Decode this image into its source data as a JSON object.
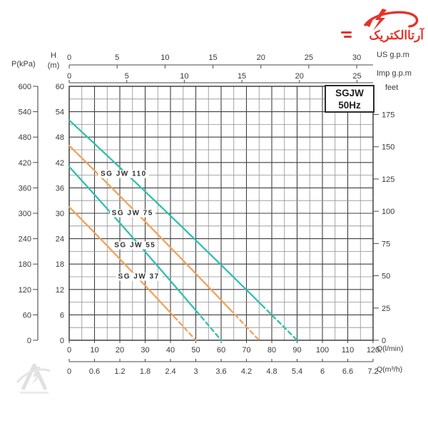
{
  "logo": {
    "text": "آرتاالکتریک"
  },
  "title_box": {
    "line1": "SGJW",
    "line2": "50Hz"
  },
  "axes": {
    "top_us": {
      "unit": "US g.p.m",
      "ticks": [
        0,
        5,
        10,
        15,
        20,
        25,
        30
      ]
    },
    "top_imp": {
      "unit": "Imp g.p.m",
      "ticks": [
        0,
        5,
        10,
        15,
        20,
        25
      ]
    },
    "left_pressure": {
      "unit": "P(kPa)",
      "ticks": [
        600,
        540,
        480,
        420,
        360,
        300,
        240,
        180,
        120,
        60,
        0
      ]
    },
    "left_head": {
      "unit_line1": "H",
      "unit_line2": "(m)",
      "ticks": [
        60,
        54,
        48,
        42,
        36,
        30,
        24,
        18,
        12,
        6,
        0
      ]
    },
    "right_feet": {
      "unit": "feet",
      "ticks": [
        175,
        150,
        125,
        100,
        75,
        50,
        25,
        0
      ]
    },
    "bottom_flow_lmin": {
      "unit": "Q(l/min)",
      "ticks": [
        0,
        10,
        20,
        30,
        40,
        50,
        60,
        70,
        80,
        90,
        100,
        110,
        120
      ]
    },
    "bottom_flow_m3h": {
      "unit": "Q(m³/h)",
      "ticks": [
        "0",
        "0.6",
        "1.2",
        "1.8",
        "2.4",
        "3",
        "3.6",
        "4.2",
        "4.8",
        "5.4",
        "6",
        "6.6",
        "7.2"
      ]
    }
  },
  "chart_data": {
    "type": "line",
    "title": "SGJW 50Hz",
    "xlabel": "Q (l/min)",
    "ylabel": "H (m)",
    "xlim": [
      0,
      120
    ],
    "ylim": [
      0,
      60
    ],
    "grid": {
      "x_minor_step": 5,
      "x_major_step": 10,
      "y_minor_step": 3,
      "y_major_step": 6
    },
    "conversions": {
      "us_gpm_in_l_min": 3.785,
      "imp_gpm_in_l_min": 4.546,
      "foot_in_m": 0.3048,
      "m3h_in_l_min": 16.6667
    },
    "series": [
      {
        "name": "SG JW 110",
        "color": "#2EC0B0",
        "shutoff_head_m": 52.0,
        "max_flow_l_min": 90,
        "dashed_from_l_min": 76,
        "label_at_q_h": [
          21.5,
          39.2
        ],
        "points_q_h": [
          [
            0,
            52
          ],
          [
            20,
            40.5
          ],
          [
            40,
            29
          ],
          [
            60,
            17.5
          ],
          [
            80,
            6
          ],
          [
            90,
            0
          ]
        ]
      },
      {
        "name": "SG JW 75",
        "color": "#F2A259",
        "shutoff_head_m": 46.0,
        "max_flow_l_min": 75,
        "dashed_from_l_min": 63,
        "label_at_q_h": [
          25,
          30.0
        ],
        "points_q_h": [
          [
            0,
            46
          ],
          [
            15,
            37.5
          ],
          [
            30,
            28.8
          ],
          [
            45,
            19.8
          ],
          [
            60,
            10.5
          ],
          [
            75,
            0
          ]
        ]
      },
      {
        "name": "SG JW 55",
        "color": "#2EC0B0",
        "shutoff_head_m": 41.0,
        "max_flow_l_min": 60,
        "dashed_from_l_min": 50,
        "label_at_q_h": [
          26,
          22.4
        ],
        "points_q_h": [
          [
            0,
            41
          ],
          [
            15,
            31.2
          ],
          [
            30,
            21.2
          ],
          [
            45,
            10.8
          ],
          [
            60,
            0
          ]
        ]
      },
      {
        "name": "SG JW 37",
        "color": "#F2A259",
        "shutoff_head_m": 31.5,
        "max_flow_l_min": 50,
        "dashed_from_l_min": 41,
        "label_at_q_h": [
          27.5,
          15.0
        ],
        "points_q_h": [
          [
            0,
            31.5
          ],
          [
            10,
            25.4
          ],
          [
            20,
            19.2
          ],
          [
            30,
            12.8
          ],
          [
            40,
            6.4
          ],
          [
            50,
            0
          ]
        ]
      }
    ],
    "legend_position": "top-right"
  },
  "colors": {
    "curve_teal": "#2EC0B0",
    "curve_orange": "#F2A259",
    "logo_red": "#E5332A",
    "grid_major": "#3F3F3F",
    "grid_minor": "#909090",
    "axis_line": "#4A4A4A",
    "axis_text": "#3A3A3A"
  }
}
